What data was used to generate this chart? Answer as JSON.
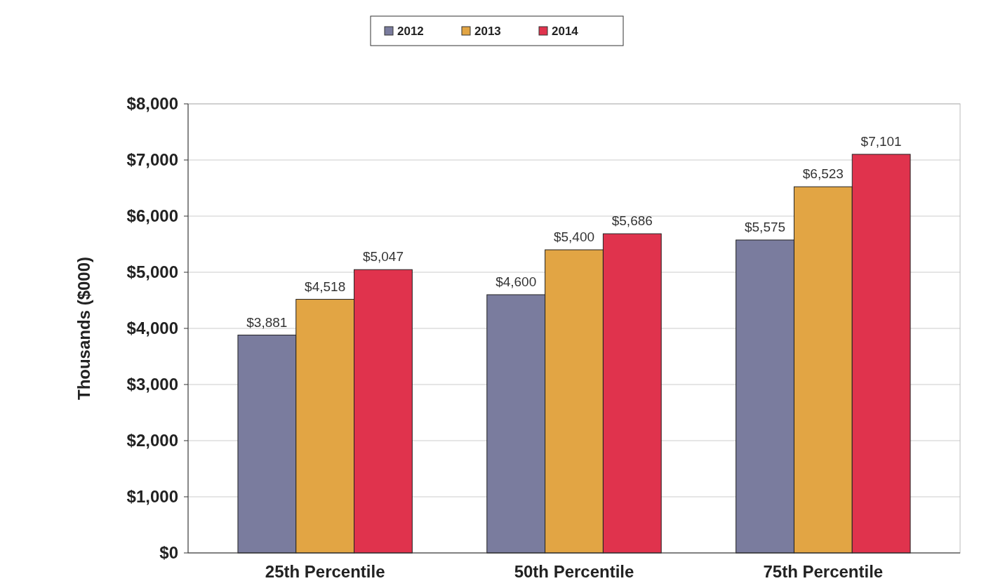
{
  "chart_data": {
    "type": "bar",
    "ylabel": "Thousands ($000)",
    "categories": [
      "25th Percentile",
      "50th Percentile",
      "75th Percentile"
    ],
    "series": [
      {
        "name": "2012",
        "color": "#7a7c9e",
        "values": [
          3881,
          4600,
          5575
        ],
        "value_labels": [
          "$3,881",
          "$4,600",
          "$5,575"
        ]
      },
      {
        "name": "2013",
        "color": "#e2a544",
        "values": [
          4518,
          5400,
          6523
        ],
        "value_labels": [
          "$4,518",
          "$5,400",
          "$6,523"
        ]
      },
      {
        "name": "2014",
        "color": "#e0334d",
        "values": [
          5047,
          5686,
          7101
        ],
        "value_labels": [
          "$5,047",
          "$5,686",
          "$7,101"
        ]
      }
    ],
    "ylim": [
      0,
      8000
    ],
    "yticks": [
      {
        "value": 0,
        "label": "$0"
      },
      {
        "value": 1000,
        "label": "$1,000"
      },
      {
        "value": 2000,
        "label": "$2,000"
      },
      {
        "value": 3000,
        "label": "$3,000"
      },
      {
        "value": 4000,
        "label": "$4,000"
      },
      {
        "value": 5000,
        "label": "$5,000"
      },
      {
        "value": 6000,
        "label": "$6,000"
      },
      {
        "value": 7000,
        "label": "$7,000"
      },
      {
        "value": 8000,
        "label": "$8,000"
      }
    ],
    "grid": "y",
    "legend": "top"
  }
}
